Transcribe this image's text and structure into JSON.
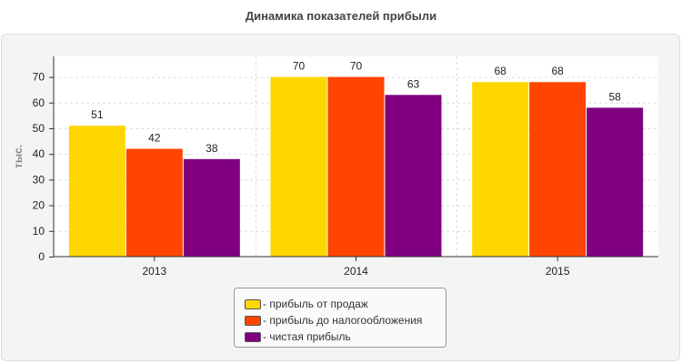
{
  "chart_data": {
    "type": "bar",
    "title": "Динамика показателей прибыли",
    "xlabel": "",
    "ylabel": "тыс.",
    "categories": [
      "2013",
      "2014",
      "2015"
    ],
    "series": [
      {
        "name": "- прибыль от продаж",
        "values": [
          51,
          70,
          68
        ],
        "color": "#FFD700"
      },
      {
        "name": "- прибыль до налогообложения",
        "values": [
          42,
          70,
          68
        ],
        "color": "#FF4500"
      },
      {
        "name": "- чистая прибыль",
        "values": [
          38,
          63,
          58
        ],
        "color": "#800080"
      }
    ],
    "ylim": [
      0,
      78
    ],
    "yticks": [
      0,
      10,
      20,
      30,
      40,
      50,
      60,
      70
    ],
    "grid": true,
    "legend_position": "bottom-center"
  }
}
